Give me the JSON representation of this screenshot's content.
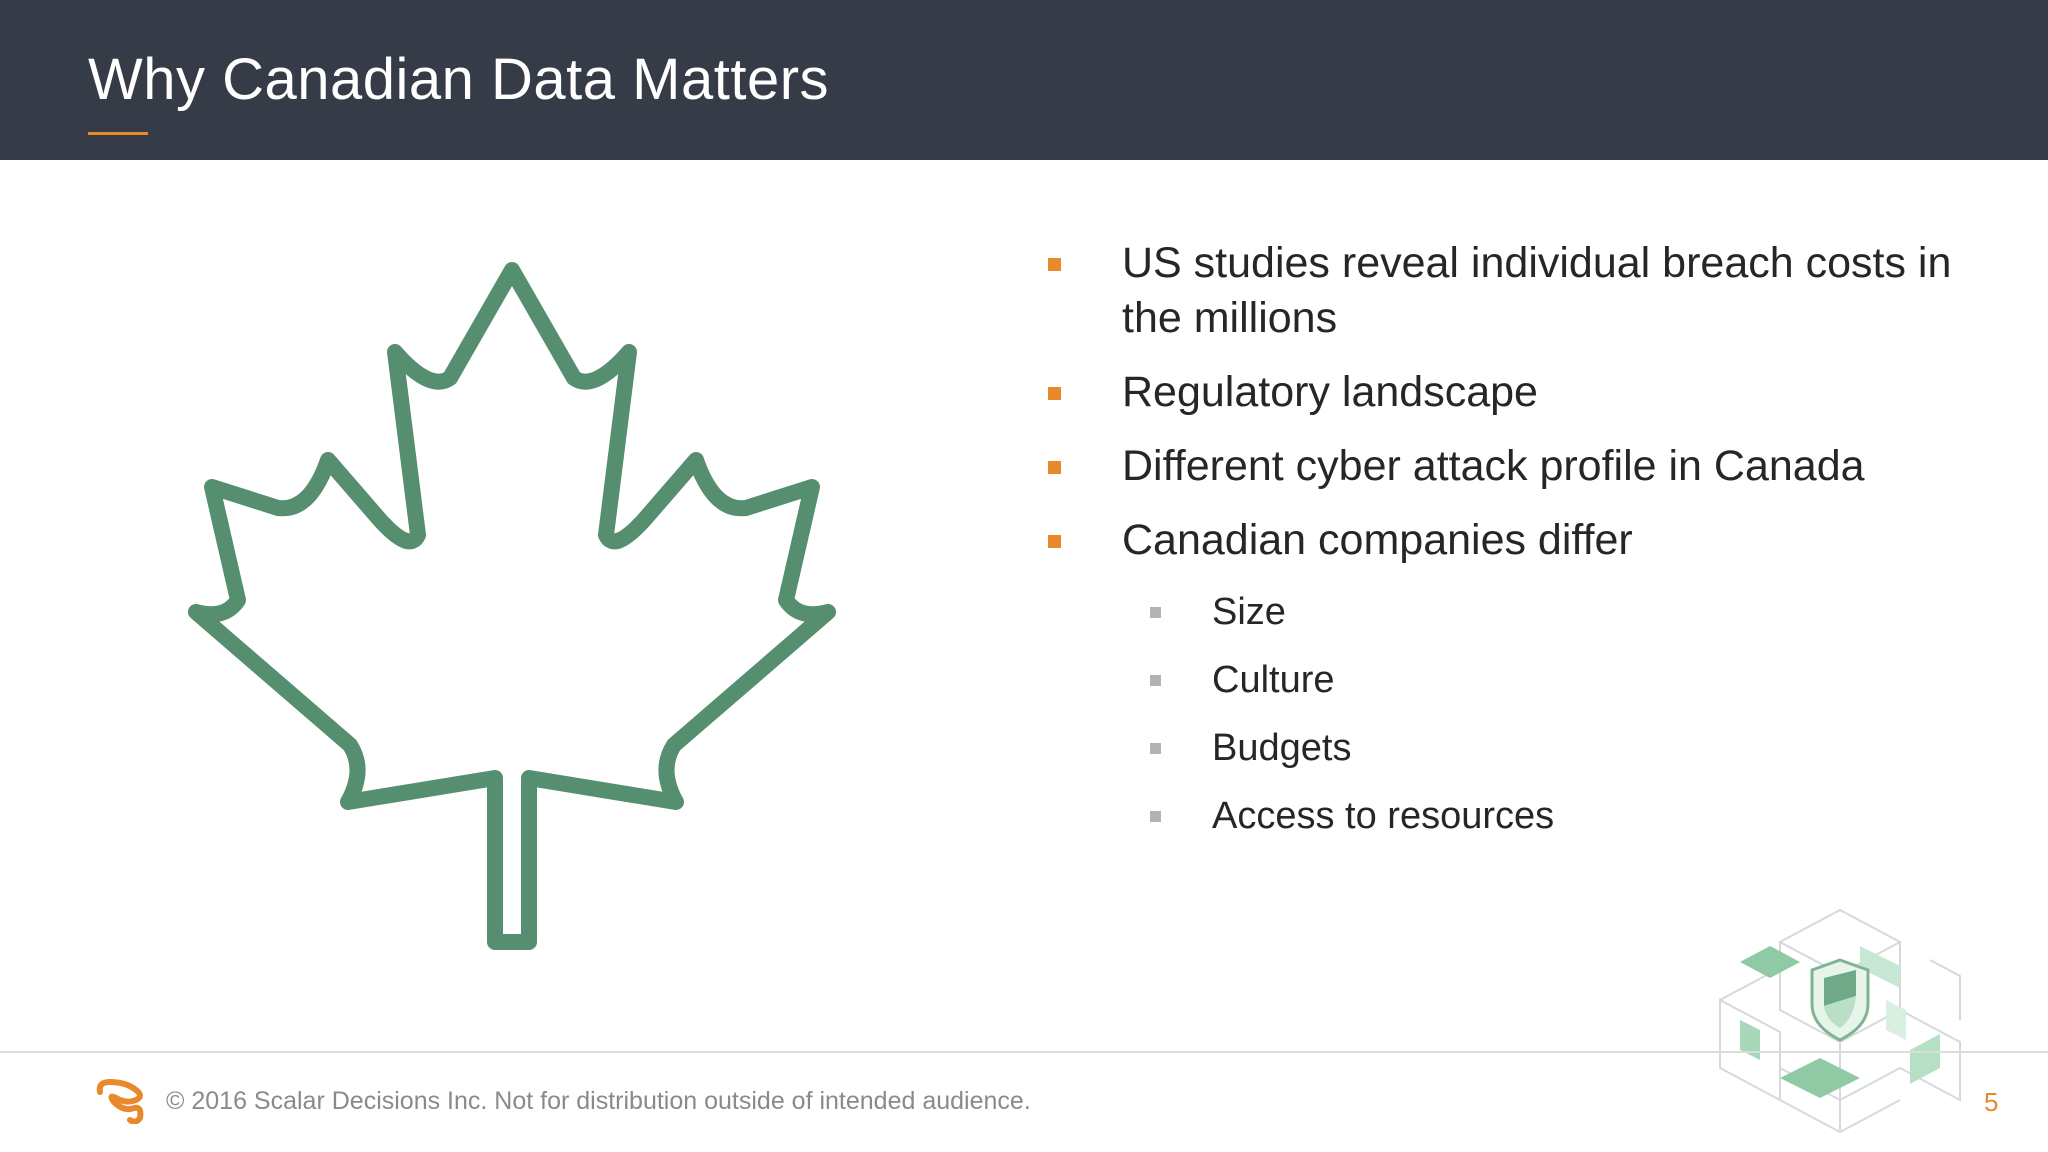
{
  "slide": {
    "title": "Why Canadian Data Matters",
    "bullets": [
      {
        "text": "US studies reveal individual breach costs in the millions"
      },
      {
        "text": "Regulatory landscape"
      },
      {
        "text": "Different cyber attack profile in Canada"
      },
      {
        "text": "Canadian companies differ"
      }
    ],
    "sub_bullets": [
      {
        "text": "Size"
      },
      {
        "text": "Culture"
      },
      {
        "text": "Budgets"
      },
      {
        "text": "Access to resources"
      }
    ]
  },
  "footer": {
    "copyright": "© 2016 Scalar Decisions Inc. Not for distribution outside of intended audience.",
    "page_number": "5"
  },
  "colors": {
    "header_bg": "#363b48",
    "accent": "#e8892b",
    "leaf_green": "#558f6f",
    "sub_marker": "#b3b3b3"
  },
  "icons": {
    "main_graphic": "maple-leaf-icon",
    "footer_logo": "scalar-logo-icon",
    "corner_art": "isometric-cubes-shield-icon"
  }
}
